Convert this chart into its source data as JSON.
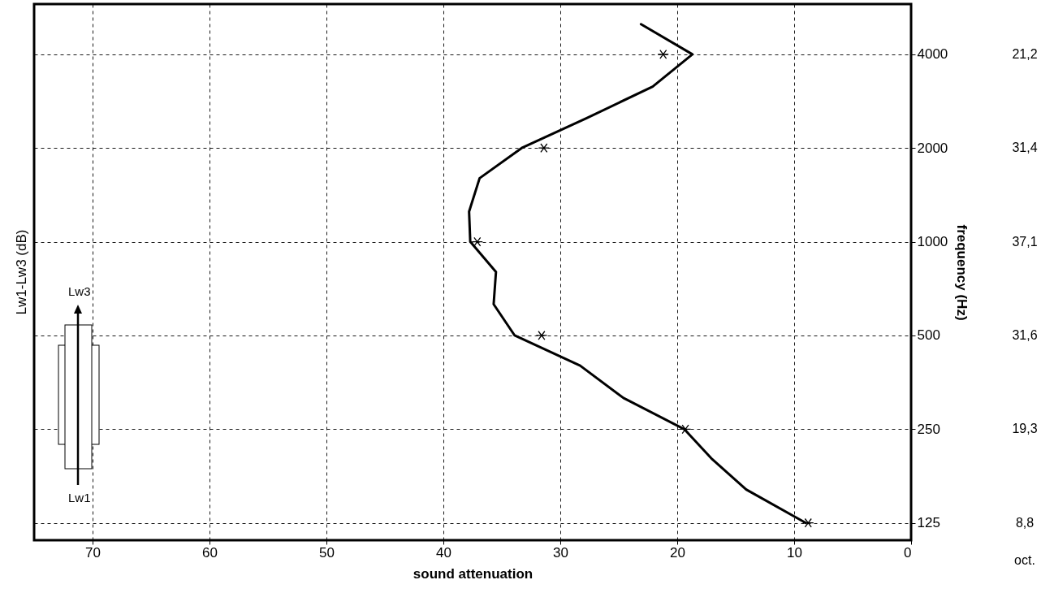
{
  "chart_data": {
    "type": "line",
    "title": "Lw1-Lw3 (dB)",
    "xlabel": "sound attenuation",
    "ylabel": "frequency (Hz)",
    "xlim": [
      75,
      0
    ],
    "xticks": [
      0,
      10,
      20,
      30,
      40,
      50,
      60,
      70
    ],
    "ylim": [
      110,
      5800
    ],
    "yticks": [
      125,
      250,
      500,
      1000,
      2000,
      4000
    ],
    "log": "y",
    "grid": true,
    "series": [
      {
        "type": "line",
        "color": "#000000",
        "x": [
          9.0,
          14.1,
          17.0,
          19.4,
          24.6,
          28.3,
          33.9,
          35.7,
          35.5,
          37.7,
          37.8,
          36.9,
          33.3,
          27.7,
          22.1,
          18.7,
          23.1
        ],
        "values": [
          125,
          160,
          200,
          250,
          315,
          400,
          500,
          630,
          800,
          1000,
          1250,
          1600,
          2000,
          2500,
          3150,
          4000,
          5000
        ]
      },
      {
        "type": "scatter",
        "color": "#000000",
        "marker": "cross",
        "x": [
          8.8,
          19.3,
          31.6,
          37.1,
          31.4,
          21.2
        ],
        "values": [
          125,
          250,
          500,
          1000,
          2000,
          4000
        ]
      }
    ],
    "annotations": [
      "oct.",
      "Lw1",
      "Lw3",
      "8,8",
      "19,3",
      "31,6",
      "37,1",
      "31,4",
      "21,2"
    ]
  }
}
